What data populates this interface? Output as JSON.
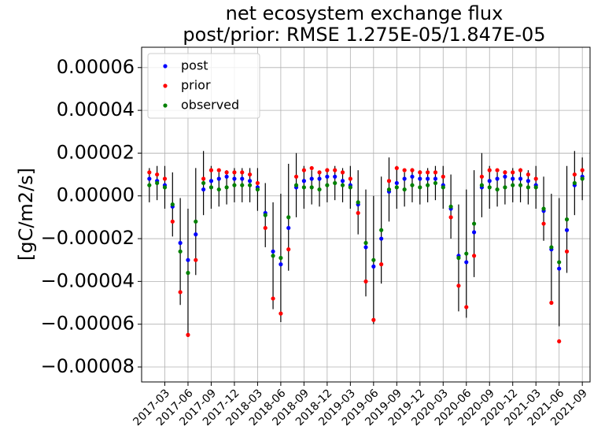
{
  "chart_data": {
    "type": "scatter",
    "title": "net ecosystem exchange flux",
    "subtitle": "post/prior: RMSE 1.275E-05/1.847E-05",
    "y_label": "[gC/m2/s]",
    "x": [
      "2017-01",
      "2017-02",
      "2017-03",
      "2017-04",
      "2017-05",
      "2017-06",
      "2017-07",
      "2017-08",
      "2017-09",
      "2017-10",
      "2017-11",
      "2017-12",
      "2018-01",
      "2018-02",
      "2018-03",
      "2018-04",
      "2018-05",
      "2018-06",
      "2018-07",
      "2018-08",
      "2018-09",
      "2018-10",
      "2018-11",
      "2018-12",
      "2019-01",
      "2019-02",
      "2019-03",
      "2019-04",
      "2019-05",
      "2019-06",
      "2019-07",
      "2019-08",
      "2019-09",
      "2019-10",
      "2019-11",
      "2019-12",
      "2020-01",
      "2020-02",
      "2020-03",
      "2020-04",
      "2020-05",
      "2020-06",
      "2020-07",
      "2020-08",
      "2020-09",
      "2020-10",
      "2020-11",
      "2020-12",
      "2021-01",
      "2021-02",
      "2021-03",
      "2021-04",
      "2021-05",
      "2021-06",
      "2021-07",
      "2021-08",
      "2021-09"
    ],
    "series": [
      {
        "name": "post",
        "color": "#0000ff",
        "values": [
          8e-06,
          7e-06,
          5e-06,
          -5e-06,
          -2.2e-05,
          -3e-05,
          -1.8e-05,
          3e-06,
          7e-06,
          8e-06,
          9e-06,
          8e-06,
          8e-06,
          7e-06,
          4e-06,
          -8e-06,
          -2.6e-05,
          -3.2e-05,
          -1.5e-05,
          4e-06,
          7e-06,
          8e-06,
          8e-06,
          9e-06,
          9e-06,
          7e-06,
          5e-06,
          -4e-06,
          -2.4e-05,
          -3.3e-05,
          -2e-05,
          2e-06,
          6e-06,
          8e-06,
          9e-06,
          8e-06,
          8e-06,
          8e-06,
          5e-06,
          -6e-06,
          -2.8e-05,
          -3.1e-05,
          -1.7e-05,
          4e-06,
          7e-06,
          8e-06,
          9e-06,
          8e-06,
          8e-06,
          7e-06,
          5e-06,
          -7e-06,
          -2.5e-05,
          -3.4e-05,
          -1.6e-05,
          5e-06,
          9e-06
        ]
      },
      {
        "name": "prior",
        "color": "#ff0000",
        "values": [
          1.1e-05,
          1e-05,
          8e-06,
          -1.2e-05,
          -4.5e-05,
          -6.5e-05,
          -3e-05,
          8e-06,
          1.2e-05,
          1.2e-05,
          1.1e-05,
          1.1e-05,
          1.1e-05,
          1e-05,
          6e-06,
          -1.5e-05,
          -4.8e-05,
          -5.5e-05,
          -2.5e-05,
          9e-06,
          1.2e-05,
          1.3e-05,
          1.1e-05,
          1.2e-05,
          1.2e-05,
          1.1e-05,
          8e-06,
          -8e-06,
          -4e-05,
          -5.8e-05,
          -3.2e-05,
          7e-06,
          1.3e-05,
          1.2e-05,
          1.2e-05,
          1.1e-05,
          1.1e-05,
          1.1e-05,
          9e-06,
          -1e-05,
          -4.2e-05,
          -5.2e-05,
          -2.8e-05,
          9e-06,
          1.2e-05,
          1.2e-05,
          1.1e-05,
          1.1e-05,
          1.2e-05,
          1e-05,
          8e-06,
          -1.3e-05,
          -5e-05,
          -6.8e-05,
          -2.6e-05,
          1e-05,
          1.2e-05
        ]
      },
      {
        "name": "observed",
        "color": "#008000",
        "values": [
          5e-06,
          6e-06,
          4e-06,
          -4e-06,
          -2.6e-05,
          -3.6e-05,
          -1.2e-05,
          6e-06,
          4e-06,
          3e-06,
          4e-06,
          5e-06,
          5e-06,
          5e-06,
          3e-06,
          -9e-06,
          -2.8e-05,
          -2.9e-05,
          -1e-05,
          5e-06,
          4e-06,
          4e-06,
          3e-06,
          5e-06,
          6e-06,
          5e-06,
          4e-06,
          -3e-06,
          -2.2e-05,
          -3e-05,
          -1.6e-05,
          3e-06,
          4e-06,
          3e-06,
          5e-06,
          4e-06,
          5e-06,
          6e-06,
          4e-06,
          -5e-06,
          -2.9e-05,
          -2.7e-05,
          -1.3e-05,
          5e-06,
          4e-06,
          3e-06,
          4e-06,
          5e-06,
          5e-06,
          4e-06,
          4e-06,
          -6e-06,
          -2.4e-05,
          -3.1e-05,
          -1.1e-05,
          6e-06,
          8e-06
        ],
        "errors": [
          8e-06,
          8e-06,
          1e-05,
          1.5e-05,
          2.5e-05,
          3e-05,
          2.5e-05,
          1.5e-05,
          1e-05,
          8e-06,
          8e-06,
          8e-06,
          8e-06,
          8e-06,
          1e-05,
          1.5e-05,
          2.5e-05,
          3e-05,
          2.5e-05,
          1.5e-05,
          1e-05,
          8e-06,
          8e-06,
          8e-06,
          8e-06,
          8e-06,
          1e-05,
          1.5e-05,
          2.5e-05,
          3e-05,
          2.5e-05,
          1.5e-05,
          1e-05,
          8e-06,
          8e-06,
          8e-06,
          8e-06,
          8e-06,
          1e-05,
          1.5e-05,
          2.5e-05,
          3e-05,
          2.5e-05,
          1.5e-05,
          1e-05,
          8e-06,
          8e-06,
          8e-06,
          8e-06,
          8e-06,
          1e-05,
          1.5e-05,
          2.5e-05,
          3e-05,
          2.5e-05,
          1.5e-05,
          1e-05
        ]
      }
    ],
    "error_color": "#000000",
    "xlim": [
      "2016-12",
      "2021-10"
    ],
    "xticks": [
      "2017-03",
      "2017-06",
      "2017-09",
      "2017-12",
      "2018-03",
      "2018-06",
      "2018-09",
      "2018-12",
      "2019-03",
      "2019-06",
      "2019-09",
      "2019-12",
      "2020-03",
      "2020-06",
      "2020-09",
      "2020-12",
      "2021-03",
      "2021-06",
      "2021-09"
    ],
    "ylim": [
      -8.7e-05,
      6.95e-05
    ],
    "yticks": [
      {
        "value": 6e-05,
        "label": "0.00006"
      },
      {
        "value": 4e-05,
        "label": "0.00004"
      },
      {
        "value": 2e-05,
        "label": "0.00002"
      },
      {
        "value": 0,
        "label": "0.00000"
      },
      {
        "value": -2e-05,
        "label": "−0.00002"
      },
      {
        "value": -4e-05,
        "label": "−0.00004"
      },
      {
        "value": -6e-05,
        "label": "−0.00006"
      },
      {
        "value": -8e-05,
        "label": "−0.00008"
      }
    ],
    "grid": true,
    "legend": "upper left"
  }
}
